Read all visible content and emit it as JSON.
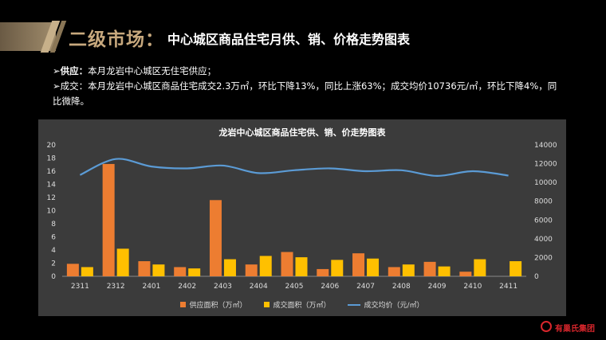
{
  "header": {
    "title_main": "二级市场：",
    "title_sub": "中心城区商品住宅月供、销、价格走势图表"
  },
  "bullets": {
    "supply_label": "➢供应：",
    "supply_text": "本月龙岩中心城区无住宅供应；",
    "deal_label": "➢成交：",
    "deal_text": "本月龙岩中心城区商品住宅成交2.3万㎡，环比下降13%，同比上涨63%；成交均价10736元/㎡，环比下降4%，同比微降。"
  },
  "logo": {
    "text": "有巢氏集团"
  },
  "colors": {
    "supply": "#ed7d31",
    "deal": "#ffc000",
    "price": "#5b9bd5",
    "panel": "#3b3b3b",
    "title_gold": "#c8a97e"
  },
  "chart_data": {
    "type": "bar",
    "title": "龙岩中心城区商品住宅供、销、价走势图表",
    "categories": [
      "2311",
      "2312",
      "2401",
      "2402",
      "2403",
      "2404",
      "2405",
      "2406",
      "2407",
      "2408",
      "2409",
      "2410",
      "2411"
    ],
    "series": [
      {
        "name": "供应面积（万㎡）",
        "type": "bar",
        "axis": "left",
        "values": [
          1.9,
          17.1,
          2.3,
          1.4,
          11.6,
          1.8,
          3.7,
          1.1,
          3.5,
          1.4,
          2.2,
          0.7,
          0
        ]
      },
      {
        "name": "成交面积（万㎡）",
        "type": "bar",
        "axis": "left",
        "values": [
          1.4,
          4.2,
          1.8,
          1.2,
          2.6,
          3.1,
          2.9,
          2.5,
          2.7,
          1.8,
          1.5,
          2.6,
          2.3
        ]
      },
      {
        "name": "成交均价（元/㎡）",
        "type": "line",
        "axis": "right",
        "values": [
          10800,
          12500,
          11700,
          11500,
          11800,
          11000,
          11300,
          11500,
          11200,
          11300,
          10700,
          11200,
          10736
        ]
      }
    ],
    "ylim_left": [
      0,
      20
    ],
    "yticks_left": [
      "0",
      "2",
      "4",
      "6",
      "8",
      "10",
      "12",
      "14",
      "16",
      "18",
      "20"
    ],
    "ylim_right": [
      0,
      14000
    ],
    "yticks_right": [
      "0",
      "2000",
      "4000",
      "6000",
      "8000",
      "10000",
      "12000",
      "14000"
    ],
    "legend_position": "bottom",
    "grid": false
  }
}
